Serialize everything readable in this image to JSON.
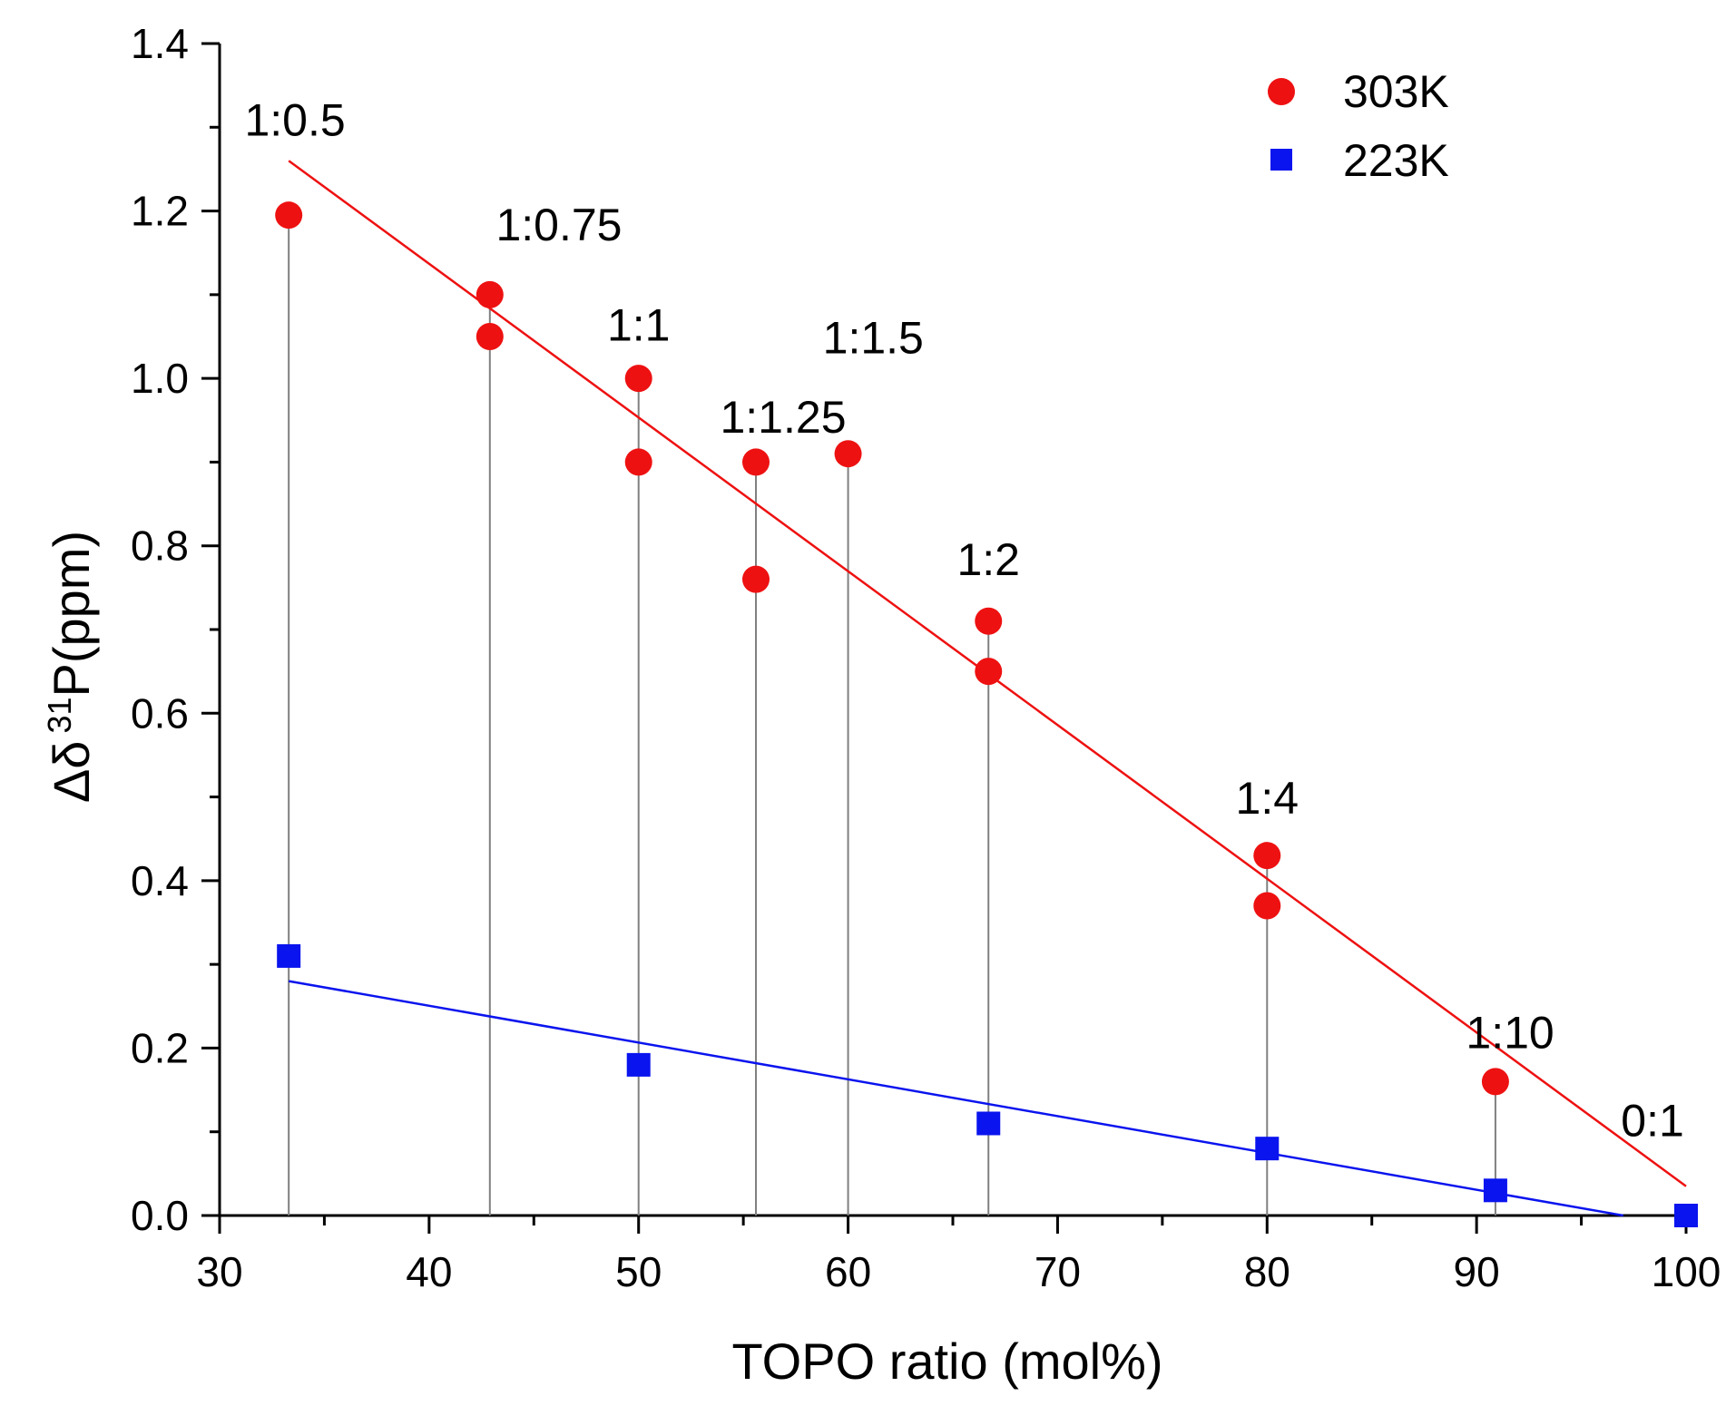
{
  "chart_data": {
    "type": "scatter",
    "title": "",
    "xlabel": "TOPO ratio (mol%)",
    "ylabel": {
      "prefix": "Δδ",
      "superscript": "31",
      "suffix": "P(ppm)"
    },
    "xlim": [
      30,
      100
    ],
    "ylim": [
      0.0,
      1.4
    ],
    "xticks": [
      30,
      40,
      50,
      60,
      70,
      80,
      90,
      100
    ],
    "yticks": [
      "0.0",
      "0.2",
      "0.4",
      "0.6",
      "0.8",
      "1.0",
      "1.2",
      "1.4"
    ],
    "legend_position": "top-right",
    "series": [
      {
        "name": "303K",
        "color": "#ee1111",
        "marker": "circle",
        "points": [
          {
            "x": 33.3,
            "y": 1.195
          },
          {
            "x": 42.9,
            "y": 1.1
          },
          {
            "x": 42.9,
            "y": 1.05
          },
          {
            "x": 50.0,
            "y": 1.0
          },
          {
            "x": 50.0,
            "y": 0.9
          },
          {
            "x": 55.6,
            "y": 0.9
          },
          {
            "x": 55.6,
            "y": 0.76
          },
          {
            "x": 60.0,
            "y": 0.91
          },
          {
            "x": 66.7,
            "y": 0.71
          },
          {
            "x": 66.7,
            "y": 0.65
          },
          {
            "x": 80.0,
            "y": 0.43
          },
          {
            "x": 80.0,
            "y": 0.37
          },
          {
            "x": 90.9,
            "y": 0.16
          }
        ],
        "fit": {
          "x": [
            33.3,
            100
          ],
          "y": [
            1.26,
            0.035
          ]
        }
      },
      {
        "name": "223K",
        "color": "#0a14ee",
        "marker": "square",
        "points": [
          {
            "x": 33.3,
            "y": 0.31
          },
          {
            "x": 50.0,
            "y": 0.18
          },
          {
            "x": 66.7,
            "y": 0.11
          },
          {
            "x": 80.0,
            "y": 0.08
          },
          {
            "x": 90.9,
            "y": 0.03
          },
          {
            "x": 100.0,
            "y": 0.0
          }
        ],
        "fit": {
          "x": [
            33.3,
            97.0
          ],
          "y": [
            0.28,
            0.0
          ]
        }
      }
    ],
    "drop_lines": {
      "color": "#808080",
      "lines": [
        {
          "x": 33.3,
          "y": 1.195
        },
        {
          "x": 42.9,
          "y": 1.1
        },
        {
          "x": 50.0,
          "y": 1.0
        },
        {
          "x": 55.6,
          "y": 0.9
        },
        {
          "x": 60.0,
          "y": 0.91
        },
        {
          "x": 66.7,
          "y": 0.71
        },
        {
          "x": 80.0,
          "y": 0.43
        },
        {
          "x": 90.9,
          "y": 0.16
        }
      ]
    },
    "annotations": [
      {
        "text": "1:0.5",
        "x": 33.6,
        "y": 1.29
      },
      {
        "text": "1:0.75",
        "x": 46.2,
        "y": 1.165
      },
      {
        "text": "1:1",
        "x": 50.0,
        "y": 1.045
      },
      {
        "text": "1:1.25",
        "x": 56.9,
        "y": 0.935
      },
      {
        "text": "1:1.5",
        "x": 61.2,
        "y": 1.03
      },
      {
        "text": "1:2",
        "x": 66.7,
        "y": 0.765
      },
      {
        "text": "1:4",
        "x": 80.0,
        "y": 0.48
      },
      {
        "text": "1:10",
        "x": 91.6,
        "y": 0.2
      },
      {
        "text": "0:1",
        "x": 98.4,
        "y": 0.095
      }
    ]
  }
}
